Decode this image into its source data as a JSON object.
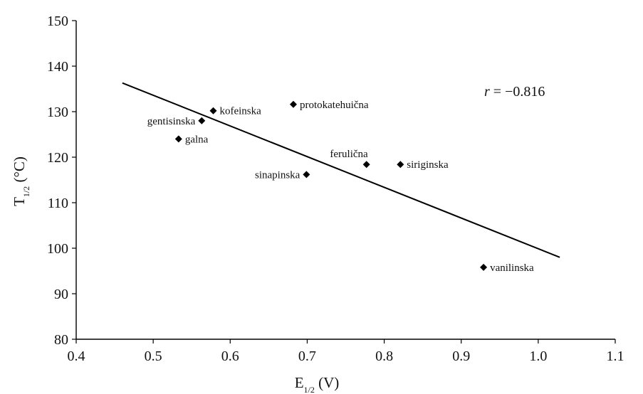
{
  "chart_data": {
    "type": "scatter",
    "title": "",
    "xlabel": {
      "main": "E",
      "sub": "1/2",
      "unit": " (V)"
    },
    "ylabel": {
      "main": "T",
      "sub": "1/2",
      "unit": " (°C)"
    },
    "xlim": [
      0.4,
      1.1
    ],
    "ylim": [
      80,
      150
    ],
    "xticks": [
      0.4,
      0.5,
      0.6,
      0.7,
      0.8,
      0.9,
      1.0,
      1.1
    ],
    "xtick_labels": [
      "0.4",
      "0.5",
      "0.6",
      "0.7",
      "0.8",
      "0.9",
      "1.0",
      "1.1"
    ],
    "yticks": [
      80,
      90,
      100,
      110,
      120,
      130,
      140,
      150
    ],
    "ytick_labels": [
      "80",
      "90",
      "100",
      "110",
      "120",
      "130",
      "140",
      "150"
    ],
    "grid": false,
    "legend": "none",
    "marker": "diamond",
    "points": [
      {
        "label": "gentisinska",
        "x": 0.563,
        "y": 128.0,
        "label_side": "left"
      },
      {
        "label": "galna",
        "x": 0.533,
        "y": 124.0,
        "label_side": "right"
      },
      {
        "label": "kofeinska",
        "x": 0.578,
        "y": 130.2,
        "label_side": "right"
      },
      {
        "label": "protokatehuična",
        "x": 0.682,
        "y": 131.6,
        "label_side": "right"
      },
      {
        "label": "sinapinska",
        "x": 0.699,
        "y": 116.2,
        "label_side": "left"
      },
      {
        "label": "ferulična",
        "x": 0.777,
        "y": 118.4,
        "label_side": "above-left"
      },
      {
        "label": "siriginska",
        "x": 0.821,
        "y": 118.4,
        "label_side": "right"
      },
      {
        "label": "vanilinska",
        "x": 0.929,
        "y": 95.8,
        "label_side": "right"
      }
    ],
    "fit_line": {
      "x": [
        0.46,
        1.028
      ],
      "y": [
        136.3,
        98.0
      ]
    },
    "annotation": {
      "r_symbol": "r",
      "r_value": " = −0.816"
    },
    "colors": {
      "points": "#000000",
      "line": "#000000",
      "axes": "#000000"
    }
  }
}
